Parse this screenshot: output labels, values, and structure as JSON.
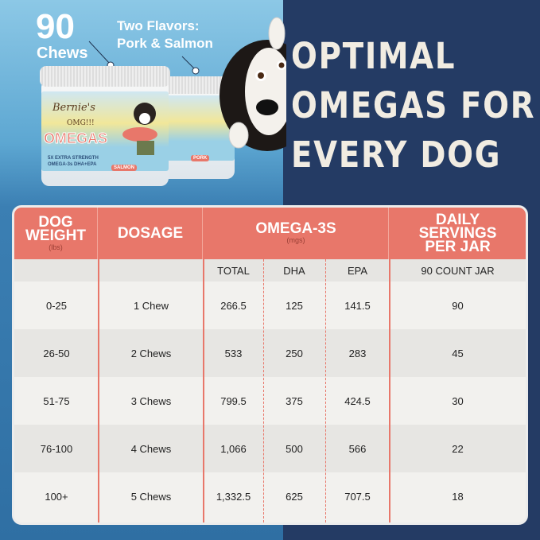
{
  "promo": {
    "count_number": "90",
    "count_label": "Chews",
    "flavors_line1": "Two Flavors:",
    "flavors_line2": "Pork & Salmon",
    "headline": [
      "OPTIMAL",
      "OMEGAS FOR",
      "EVERY DOG"
    ]
  },
  "product": {
    "brand": "Bernie's",
    "sub_brand": "OMG!!!",
    "name": "OMEGAS",
    "tagline1": "5X EXTRA STRENGTH",
    "tagline2": "OMEGA-3s DHA+EPA",
    "flavor_front": "SALMON",
    "flavor_back": "PORK"
  },
  "colors": {
    "accent": "#e8776a",
    "navy": "#243b64",
    "sky": "#5da7d2"
  },
  "table": {
    "headers": {
      "weight": "DOG WEIGHT",
      "weight_unit": "(lbs)",
      "dosage": "DOSAGE",
      "omega": "OMEGA-3S",
      "omega_unit": "(mgs)",
      "servings": "DAILY SERVINGS PER JAR"
    },
    "subheaders": {
      "total": "TOTAL",
      "dha": "DHA",
      "epa": "EPA",
      "jar": "90 COUNT JAR"
    },
    "rows": [
      {
        "weight": "0-25",
        "dosage": "1 Chew",
        "total": "266.5",
        "dha": "125",
        "epa": "141.5",
        "servings": "90"
      },
      {
        "weight": "26-50",
        "dosage": "2 Chews",
        "total": "533",
        "dha": "250",
        "epa": "283",
        "servings": "45"
      },
      {
        "weight": "51-75",
        "dosage": "3 Chews",
        "total": "799.5",
        "dha": "375",
        "epa": "424.5",
        "servings": "30"
      },
      {
        "weight": "76-100",
        "dosage": "4 Chews",
        "total": "1,066",
        "dha": "500",
        "epa": "566",
        "servings": "22"
      },
      {
        "weight": "100+",
        "dosage": "5 Chews",
        "total": "1,332.5",
        "dha": "625",
        "epa": "707.5",
        "servings": "18"
      }
    ]
  }
}
